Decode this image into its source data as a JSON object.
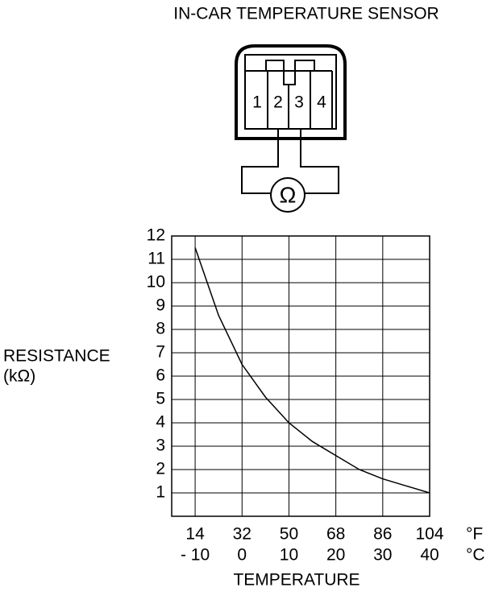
{
  "diagram": {
    "pins": [
      "1",
      "2",
      "3",
      "4"
    ],
    "meter": "Ω"
  },
  "chart_data": {
    "type": "line",
    "title": "IN-CAR TEMPERATURE SENSOR",
    "ylabel": "RESISTANCE",
    "ylabel_unit": "(kΩ)",
    "xlabel": "TEMPERATURE",
    "x_unit": "°C",
    "x2_unit": "°F",
    "x": [
      -10,
      -5,
      0,
      5,
      10,
      15,
      20,
      25,
      30,
      35,
      40
    ],
    "series": [
      {
        "color": "#000000",
        "values": [
          11.5,
          8.6,
          6.5,
          5.1,
          4.0,
          3.2,
          2.6,
          2.0,
          1.6,
          1.3,
          1.0
        ]
      }
    ],
    "xlim": [
      -15,
      40
    ],
    "xticks": [
      {
        "value": -10,
        "label": "- 10"
      },
      0,
      10,
      20,
      30,
      40
    ],
    "x2lim": [
      5,
      104
    ],
    "x2ticks": [
      14,
      32,
      50,
      68,
      86,
      104
    ],
    "ylim": [
      0,
      12
    ],
    "yticks": [
      1,
      2,
      3,
      4,
      5,
      6,
      7,
      8,
      9,
      10,
      11,
      12
    ],
    "grid": true
  }
}
